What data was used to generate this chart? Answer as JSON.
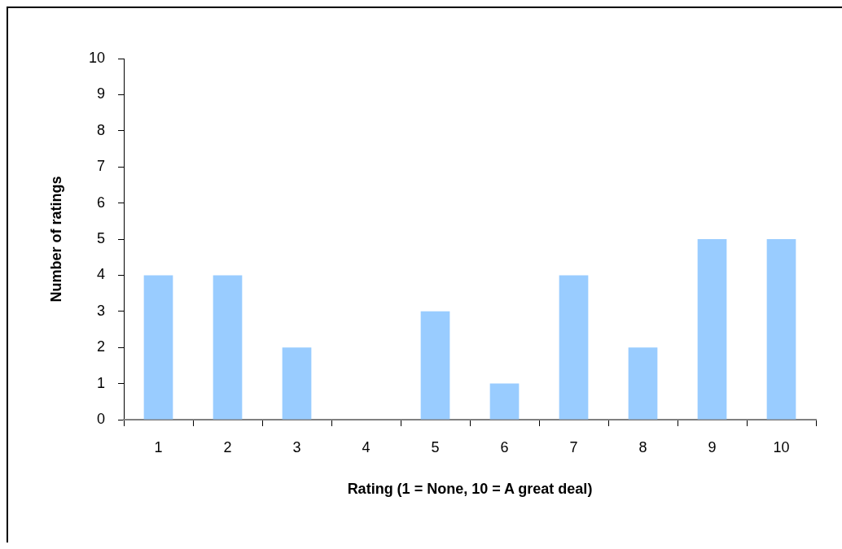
{
  "chart_data": {
    "type": "bar",
    "xlabel": "Rating (1 = None, 10 = A great deal)",
    "ylabel": "Number of ratings",
    "categories": [
      "1",
      "2",
      "3",
      "4",
      "5",
      "6",
      "7",
      "8",
      "9",
      "10"
    ],
    "values": [
      4,
      4,
      2,
      0,
      3,
      1,
      4,
      2,
      5,
      5
    ],
    "color": "#99ccff",
    "ylim": [
      0,
      10
    ],
    "yticks": [
      0,
      1,
      2,
      3,
      4,
      5,
      6,
      7,
      8,
      9,
      10
    ],
    "grid": false
  }
}
